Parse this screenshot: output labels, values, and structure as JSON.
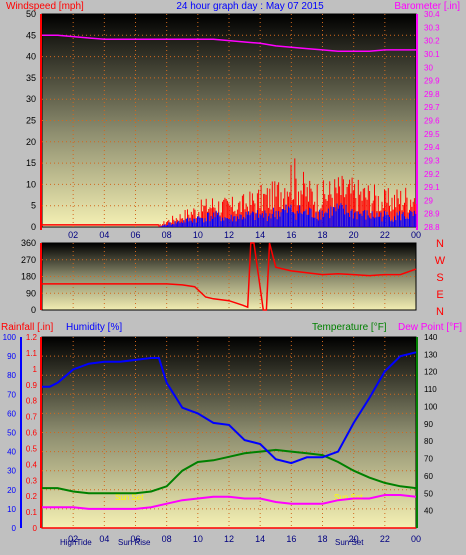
{
  "chart_data": [
    {
      "type": "line",
      "title": "24 hour graph day : May 07 2015",
      "left_axis_label": "Windspeed [mph]",
      "right_axis_label": "Barometer [.in]",
      "x_ticks": [
        "02",
        "04",
        "06",
        "08",
        "10",
        "12",
        "14",
        "16",
        "18",
        "20",
        "22",
        "00"
      ],
      "x_range_hours": [
        0,
        24
      ],
      "left_ylim": [
        0,
        50
      ],
      "left_ticks": [
        "0",
        "5",
        "10",
        "15",
        "20",
        "25",
        "30",
        "35",
        "40",
        "45",
        "50"
      ],
      "right_ylim": [
        28.8,
        30.4
      ],
      "right_ticks": [
        "28.8",
        "28.9",
        "29",
        "29.1",
        "29.2",
        "29.3",
        "29.4",
        "29.5",
        "29.6",
        "29.7",
        "29.8",
        "29.9",
        "30",
        "30.1",
        "30.2",
        "30.3",
        "30.4"
      ],
      "grid": true,
      "series": [
        {
          "name": "Barometer",
          "axis": "right",
          "color": "#ff00ff",
          "x": [
            0,
            1,
            2,
            3,
            4,
            5,
            6,
            7,
            8,
            9,
            10,
            11,
            12,
            13,
            14,
            15,
            16,
            17,
            18,
            19,
            20,
            21,
            22,
            23,
            24
          ],
          "y": [
            30.24,
            30.24,
            30.23,
            30.22,
            30.21,
            30.21,
            30.21,
            30.21,
            30.21,
            30.21,
            30.21,
            30.21,
            30.2,
            30.19,
            30.18,
            30.16,
            30.15,
            30.14,
            30.13,
            30.12,
            30.12,
            30.12,
            30.13,
            30.13,
            30.13
          ]
        },
        {
          "name": "Wind gust",
          "axis": "left",
          "color": "#ff0000",
          "x": [
            0,
            7.5,
            8,
            9,
            10,
            11,
            12,
            13,
            14,
            15,
            16,
            17,
            18,
            19,
            20,
            21,
            22,
            23,
            24
          ],
          "y": [
            0.5,
            0.5,
            2,
            4,
            6,
            8,
            7,
            8,
            10,
            11,
            18,
            12,
            11,
            13,
            12,
            11,
            9,
            10,
            11
          ]
        },
        {
          "name": "Wind speed",
          "axis": "left",
          "color": "#0000ff",
          "x": [
            0,
            7.5,
            8,
            9,
            10,
            11,
            12,
            13,
            14,
            15,
            16,
            17,
            18,
            19,
            20,
            21,
            22,
            23,
            24
          ],
          "y": [
            0,
            0,
            1,
            2,
            3,
            4,
            3,
            4,
            4,
            5,
            6,
            5,
            5,
            6,
            5,
            4,
            4,
            4,
            4
          ]
        }
      ]
    },
    {
      "type": "line",
      "left_ylim": [
        0,
        360
      ],
      "left_ticks": [
        "0",
        "90",
        "180",
        "270",
        "360"
      ],
      "right_labels": [
        "N",
        "W",
        "S",
        "E",
        "N"
      ],
      "grid": true,
      "series": [
        {
          "name": "Wind direction",
          "color": "#ff0000",
          "x": [
            0,
            0.5,
            1,
            6,
            8,
            9,
            9.8,
            10.5,
            11,
            12,
            12.9,
            13.2,
            13.4,
            13.6,
            14.2,
            14.4,
            14.6,
            15,
            16,
            17,
            18,
            19,
            20,
            21,
            22,
            23,
            24
          ],
          "y": [
            140,
            140,
            140,
            140,
            140,
            135,
            125,
            70,
            60,
            50,
            25,
            15,
            360,
            360,
            0,
            0,
            360,
            230,
            210,
            200,
            190,
            195,
            190,
            185,
            190,
            190,
            220
          ]
        }
      ]
    },
    {
      "type": "line",
      "left_axis_label": "Rainfall [.in]",
      "second_left_axis_label": "Humidity [%]",
      "right_axis_label": "Temperature [°F]",
      "second_right_axis_label": "Dew Point [°F]",
      "rain_ylim": [
        0,
        1.2
      ],
      "rain_ticks": [
        "0",
        "0.1",
        "0.2",
        "0.3",
        "0.4",
        "0.5",
        "0.6",
        "0.7",
        "0.8",
        "0.9",
        "1",
        "1.1",
        "1.2"
      ],
      "humidity_ylim": [
        0,
        100
      ],
      "humidity_ticks": [
        "0",
        "10",
        "20",
        "30",
        "40",
        "50",
        "60",
        "70",
        "80",
        "90",
        "100"
      ],
      "temp_ylim": [
        30,
        140
      ],
      "temp_ticks": [
        "40",
        "50",
        "60",
        "70",
        "80",
        "90",
        "100",
        "110",
        "120",
        "130",
        "140"
      ],
      "x_ticks": [
        "02",
        "04",
        "06",
        "08",
        "10",
        "12",
        "14",
        "16",
        "18",
        "20",
        "22",
        "00"
      ],
      "bottom_labels": [
        "HighTide",
        "Sun Rise",
        "Sun Set"
      ],
      "annotations": [
        "Sun Set",
        "Sun Set"
      ],
      "grid": true,
      "series": [
        {
          "name": "Humidity",
          "axis": "humidity",
          "color": "#0000ff",
          "x": [
            0,
            0.5,
            1,
            2,
            3,
            4,
            5,
            6,
            7,
            7.5,
            8,
            9,
            10,
            11,
            12,
            13,
            14,
            15,
            16,
            17,
            18,
            19,
            20,
            21,
            22,
            23,
            24
          ],
          "y": [
            74,
            74,
            76,
            83,
            86,
            87,
            87,
            88,
            89,
            89,
            76,
            63,
            60,
            55,
            54,
            46,
            44,
            36,
            34,
            37,
            37,
            40,
            55,
            68,
            82,
            90,
            92
          ]
        },
        {
          "name": "Temperature",
          "axis": "temp",
          "color": "#008000",
          "x": [
            0,
            1,
            2,
            3,
            4,
            5,
            6,
            7,
            8,
            9,
            10,
            11,
            12,
            13,
            14,
            15,
            16,
            17,
            18,
            19,
            20,
            21,
            22,
            23,
            24
          ],
          "y": [
            53,
            53,
            51,
            50,
            50,
            50,
            50,
            51,
            54,
            63,
            68,
            69,
            71,
            73,
            74,
            75,
            74,
            73,
            72,
            68,
            63,
            59,
            56,
            54,
            53
          ]
        },
        {
          "name": "Dew Point",
          "axis": "temp",
          "color": "#ff00ff",
          "x": [
            0,
            1,
            2,
            3,
            4,
            5,
            6,
            7,
            8,
            9,
            10,
            11,
            12,
            13,
            14,
            15,
            16,
            17,
            18,
            19,
            20,
            21,
            22,
            23,
            24
          ],
          "y": [
            42,
            42,
            42,
            41,
            41,
            41,
            41,
            42,
            44,
            46,
            47,
            48,
            48,
            47,
            47,
            45,
            44,
            44,
            44,
            46,
            47,
            47,
            49,
            49,
            48
          ]
        },
        {
          "name": "Rainfall",
          "axis": "rain",
          "color": "#ff0000",
          "x": [
            0,
            24
          ],
          "y": [
            0,
            0
          ]
        }
      ]
    }
  ]
}
